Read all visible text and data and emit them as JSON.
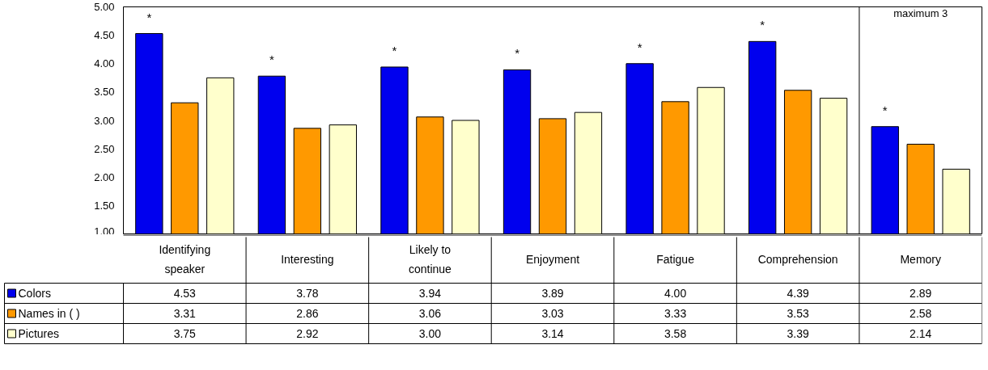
{
  "chart_data": {
    "type": "bar",
    "categories": [
      "Identifying speaker",
      "Interesting",
      "Likely to continue",
      "Enjoyment",
      "Fatigue",
      "Comprehension",
      "Memory"
    ],
    "series": [
      {
        "name": "Colors",
        "color": "#0000ee",
        "values": [
          4.53,
          3.78,
          3.94,
          3.89,
          4.0,
          4.39,
          2.89
        ],
        "value_labels": [
          "4.53",
          "3.78",
          "3.94",
          "3.89",
          "4.00",
          "4.39",
          "2.89"
        ]
      },
      {
        "name": "Names in ( )",
        "color": "#ff9900",
        "values": [
          3.31,
          2.86,
          3.06,
          3.03,
          3.33,
          3.53,
          2.58
        ],
        "value_labels": [
          "3.31",
          "2.86",
          "3.06",
          "3.03",
          "3.33",
          "3.53",
          "2.58"
        ]
      },
      {
        "name": "Pictures",
        "color": "#ffffcc",
        "values": [
          3.75,
          2.92,
          3.0,
          3.14,
          3.58,
          3.39,
          2.14
        ],
        "value_labels": [
          "3.75",
          "2.92",
          "3.00",
          "3.14",
          "3.58",
          "3.39",
          "2.14"
        ]
      }
    ],
    "ylim": [
      1,
      5
    ],
    "yticks": [
      {
        "value": 1,
        "label": "1.00"
      },
      {
        "value": 1.5,
        "label": "1.50"
      },
      {
        "value": 2,
        "label": "2.00"
      },
      {
        "value": 2.5,
        "label": "2.50"
      },
      {
        "value": 3,
        "label": "3.00"
      },
      {
        "value": 3.5,
        "label": "3.50"
      },
      {
        "value": 4,
        "label": "4.00"
      },
      {
        "value": 4.5,
        "label": "4.50"
      },
      {
        "value": 5,
        "label": "5.00"
      }
    ],
    "grid": false,
    "legend": "bottom left",
    "annotations": [
      "*",
      "*",
      "*",
      "*",
      "*",
      "*",
      "*",
      "maximum 3"
    ]
  }
}
